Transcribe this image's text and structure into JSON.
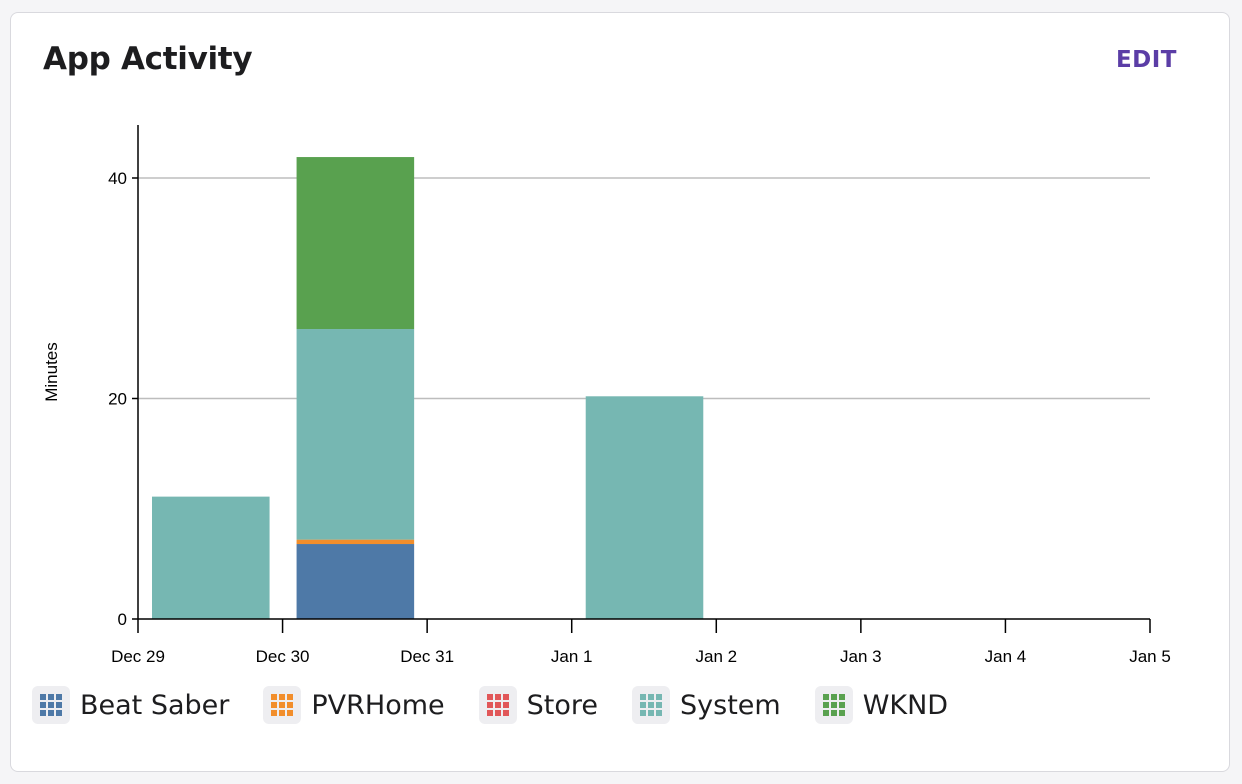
{
  "card": {
    "title": "App Activity",
    "edit_label": "EDIT",
    "accent_color": "#5b3da6"
  },
  "chart_data": {
    "type": "bar",
    "stacked": true,
    "ylabel": "Minutes",
    "ylim": [
      0,
      44
    ],
    "yticks": [
      0,
      20,
      40
    ],
    "xticks": [
      "Dec 29",
      "Dec 30",
      "Dec 31",
      "Jan 1",
      "Jan 2",
      "Jan 3",
      "Jan 4",
      "Jan 5"
    ],
    "categories": [
      "Dec 29",
      "Dec 30",
      "Dec 31",
      "Jan 1",
      "Jan 2",
      "Jan 3",
      "Jan 4"
    ],
    "grid": "horizontal",
    "legend_position": "bottom",
    "series": [
      {
        "name": "Beat Saber",
        "color": "#4e79a7",
        "values": [
          0,
          6.8,
          0,
          0,
          0,
          0,
          0
        ]
      },
      {
        "name": "PVRHome",
        "color": "#f28e2b",
        "values": [
          0,
          0.4,
          0,
          0,
          0,
          0,
          0
        ]
      },
      {
        "name": "Store",
        "color": "#e15759",
        "values": [
          0,
          0,
          0,
          0,
          0,
          0,
          0
        ]
      },
      {
        "name": "System",
        "color": "#76b7b2",
        "values": [
          11.1,
          19.1,
          0,
          20.2,
          0,
          0,
          0
        ]
      },
      {
        "name": "WKND",
        "color": "#59a14f",
        "values": [
          0,
          15.6,
          0,
          0,
          0,
          0,
          0
        ]
      }
    ]
  }
}
